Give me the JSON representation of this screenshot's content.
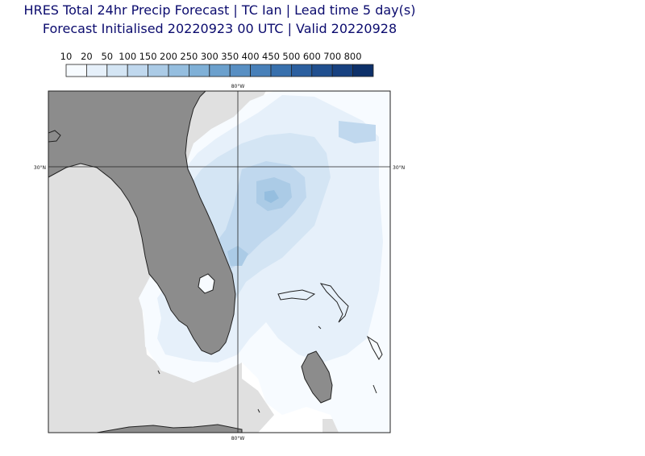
{
  "title_line1": "HRES Total 24hr Precip Forecast | TC Ian | Lead time 5 day(s)",
  "title_line2": "Forecast Initialised 20220923 00 UTC | Valid 20220928",
  "legend": {
    "levels": [
      "10",
      "20",
      "50",
      "100",
      "150",
      "200",
      "250",
      "300",
      "350",
      "400",
      "450",
      "500",
      "600",
      "700",
      "800"
    ],
    "colors": [
      "#f7fbff",
      "#e6f0fa",
      "#d4e5f4",
      "#c0d8ee",
      "#abcbe6",
      "#95bedf",
      "#7fb0d7",
      "#6ba0cd",
      "#588fc3",
      "#4880b9",
      "#3870ad",
      "#2b5f9f",
      "#204f8f",
      "#174180",
      "#0d3069"
    ]
  },
  "map": {
    "grid_labels": {
      "lon_top": "80°W",
      "lon_bottom": "80°W",
      "lat_left": "30°N",
      "lat_right": "30°N"
    },
    "land_color": "#8c8c8c",
    "nodata_color": "#e0e0e0",
    "ocean_color": "#ffffff"
  }
}
